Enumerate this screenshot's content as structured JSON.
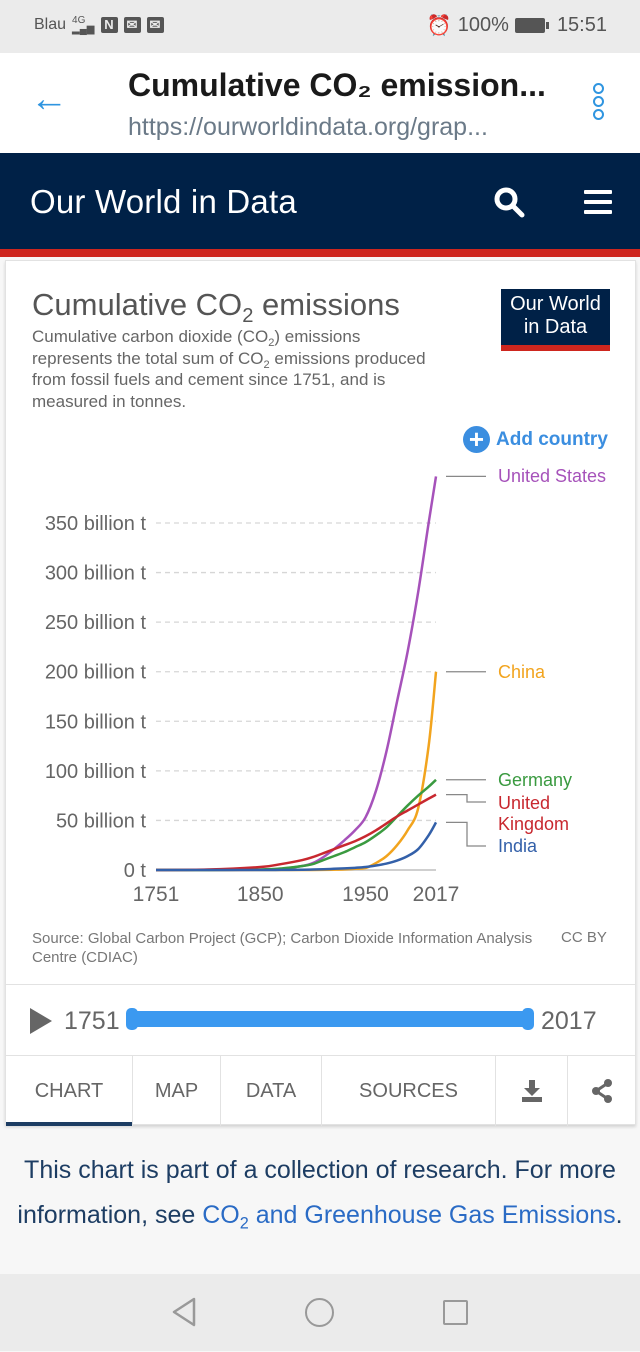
{
  "status_bar": {
    "carrier": "Blau",
    "network": "4G",
    "battery": "100%",
    "time": "15:51",
    "icons": [
      "signal-icon",
      "nfc-icon",
      "mail-icon",
      "gallery-mail-icon",
      "alarm-icon",
      "battery-icon"
    ]
  },
  "browser": {
    "title": "Cumulative CO₂ emission...",
    "url": "https://ourworldindata.org/grap...",
    "back_icon": "arrow-left-icon",
    "menu_icon": "kebab-menu-icon"
  },
  "site_header": {
    "brand": "Our World in Data",
    "search_icon": "search-icon",
    "menu_icon": "hamburger-menu-icon",
    "accent_color": "#ce261e",
    "navy_color": "#002147"
  },
  "chart_card": {
    "title_pre": "Cumulative CO",
    "title_sub": "2",
    "title_post": " emissions",
    "subtitle_parts": {
      "p1": "Cumulative carbon dioxide (CO",
      "s1": "2",
      "p2": ") emissions represents the total sum of CO",
      "s2": "2",
      "p3": " emissions produced from fossil fuels and cement since 1751, and is measured in tonnes."
    },
    "logo_line1": "Our World",
    "logo_line2": "in Data",
    "add_country": "Add country",
    "source": "Source: Global Carbon Project (GCP); Carbon Dioxide Information Analysis Centre (CDIAC)",
    "license": "CC BY"
  },
  "timeline": {
    "start": "1751",
    "end": "2017",
    "range_selected": [
      1751,
      2017
    ]
  },
  "tabs": [
    {
      "label": "CHART",
      "active": true
    },
    {
      "label": "MAP",
      "active": false
    },
    {
      "label": "DATA",
      "active": false
    },
    {
      "label": "SOURCES",
      "active": false
    }
  ],
  "tab_icons": [
    "download-icon",
    "share-icon"
  ],
  "footer": {
    "text1": "This chart is part of a collection of research. For more information, see ",
    "link_pre": "CO",
    "link_sub": "2",
    "link_post": " and Greenhouse Gas Emissions",
    "end": "."
  },
  "nav_bar": [
    "nav-back-icon",
    "nav-home-icon",
    "nav-recent-icon"
  ],
  "chart_data": {
    "type": "line",
    "title": "Cumulative CO₂ emissions",
    "xlabel": "",
    "ylabel": "",
    "x_ticks": [
      1751,
      1850,
      1950,
      2017
    ],
    "y_ticks": [
      0,
      50,
      100,
      150,
      200,
      250,
      300,
      350
    ],
    "y_tick_labels": [
      "0 t",
      "50 billion t",
      "100 billion t",
      "150 billion t",
      "200 billion t",
      "250 billion t",
      "300 billion t",
      "350 billion t"
    ],
    "xlim": [
      1751,
      2017
    ],
    "ylim": [
      0,
      400
    ],
    "y_unit": "billion t",
    "grid": "horizontal-dashed",
    "legend": "right (end-of-line labels)",
    "x": [
      1751,
      1800,
      1850,
      1870,
      1890,
      1900,
      1910,
      1920,
      1930,
      1940,
      1950,
      1960,
      1970,
      1980,
      1990,
      2000,
      2010,
      2017
    ],
    "series": [
      {
        "name": "United States",
        "color": "#a652ba",
        "values": [
          0,
          0,
          0.3,
          1.2,
          4,
          7,
          13,
          21,
          30,
          40,
          53,
          80,
          120,
          170,
          220,
          280,
          350,
          397
        ]
      },
      {
        "name": "China",
        "color": "#f2a41e",
        "values": [
          0,
          0,
          0,
          0,
          0,
          0,
          0.1,
          0.3,
          0.6,
          1.2,
          2,
          7,
          14,
          25,
          40,
          62,
          125,
          200
        ]
      },
      {
        "name": "Germany",
        "color": "#3a9a40",
        "values": [
          0,
          0,
          0.5,
          1.5,
          4,
          6,
          10,
          14,
          18,
          23,
          28,
          35,
          43,
          54,
          65,
          75,
          84,
          91
        ]
      },
      {
        "name": "United Kingdom",
        "color": "#c8282f",
        "values": [
          0,
          0.5,
          3,
          6,
          10,
          13,
          17,
          21,
          25,
          29,
          34,
          40,
          47,
          54,
          60,
          66,
          72,
          76
        ]
      },
      {
        "name": "India",
        "color": "#3360a9",
        "values": [
          0,
          0,
          0,
          0.1,
          0.3,
          0.5,
          0.8,
          1.2,
          1.6,
          2.2,
          3,
          4.5,
          6.5,
          9.5,
          14,
          21,
          35,
          48
        ]
      }
    ]
  }
}
